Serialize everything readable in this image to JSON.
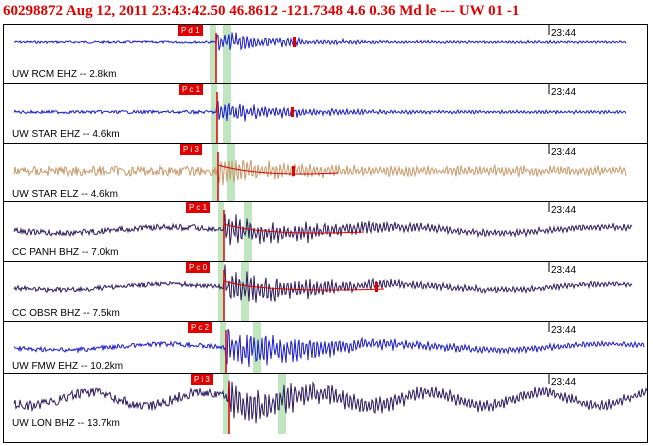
{
  "header": {
    "title": "60298872 Aug 12, 2011 23:43:42.50   46.8612 -121.7348  4.6 0.36 Md le --- UW 01  -1"
  },
  "traces": [
    {
      "label": "UW RCM EHZ -- 2.8km",
      "time": "23:44",
      "pick": "P d 1",
      "color": "#1a1acc"
    },
    {
      "label": "UW STAR EHZ -- 4.6km",
      "time": "23:44",
      "pick": "P c 1",
      "color": "#1a1acc"
    },
    {
      "label": "UW STAR ELZ -- 4.6km",
      "time": "23:44",
      "pick": "P i 3",
      "color": "#c89a6a"
    },
    {
      "label": "CC PANH BHZ -- 7.0km",
      "time": "23:44",
      "pick": "P c 1",
      "color": "#2a1a5e"
    },
    {
      "label": "CC OBSR BHZ -- 7.5km",
      "time": "23:44",
      "pick": "P c 0",
      "color": "#2a1a5e"
    },
    {
      "label": "UW FMW EHZ -- 10.2km",
      "time": "23:44",
      "pick": "P c 2",
      "color": "#1a1acc"
    },
    {
      "label": "UW LON BHZ -- 13.7km",
      "time": "23:44",
      "pick": "P i 3",
      "color": "#2a1a5e"
    }
  ],
  "colors": {
    "pick": "#e00000",
    "window": "#bfe6bf",
    "header": "#e00000"
  }
}
